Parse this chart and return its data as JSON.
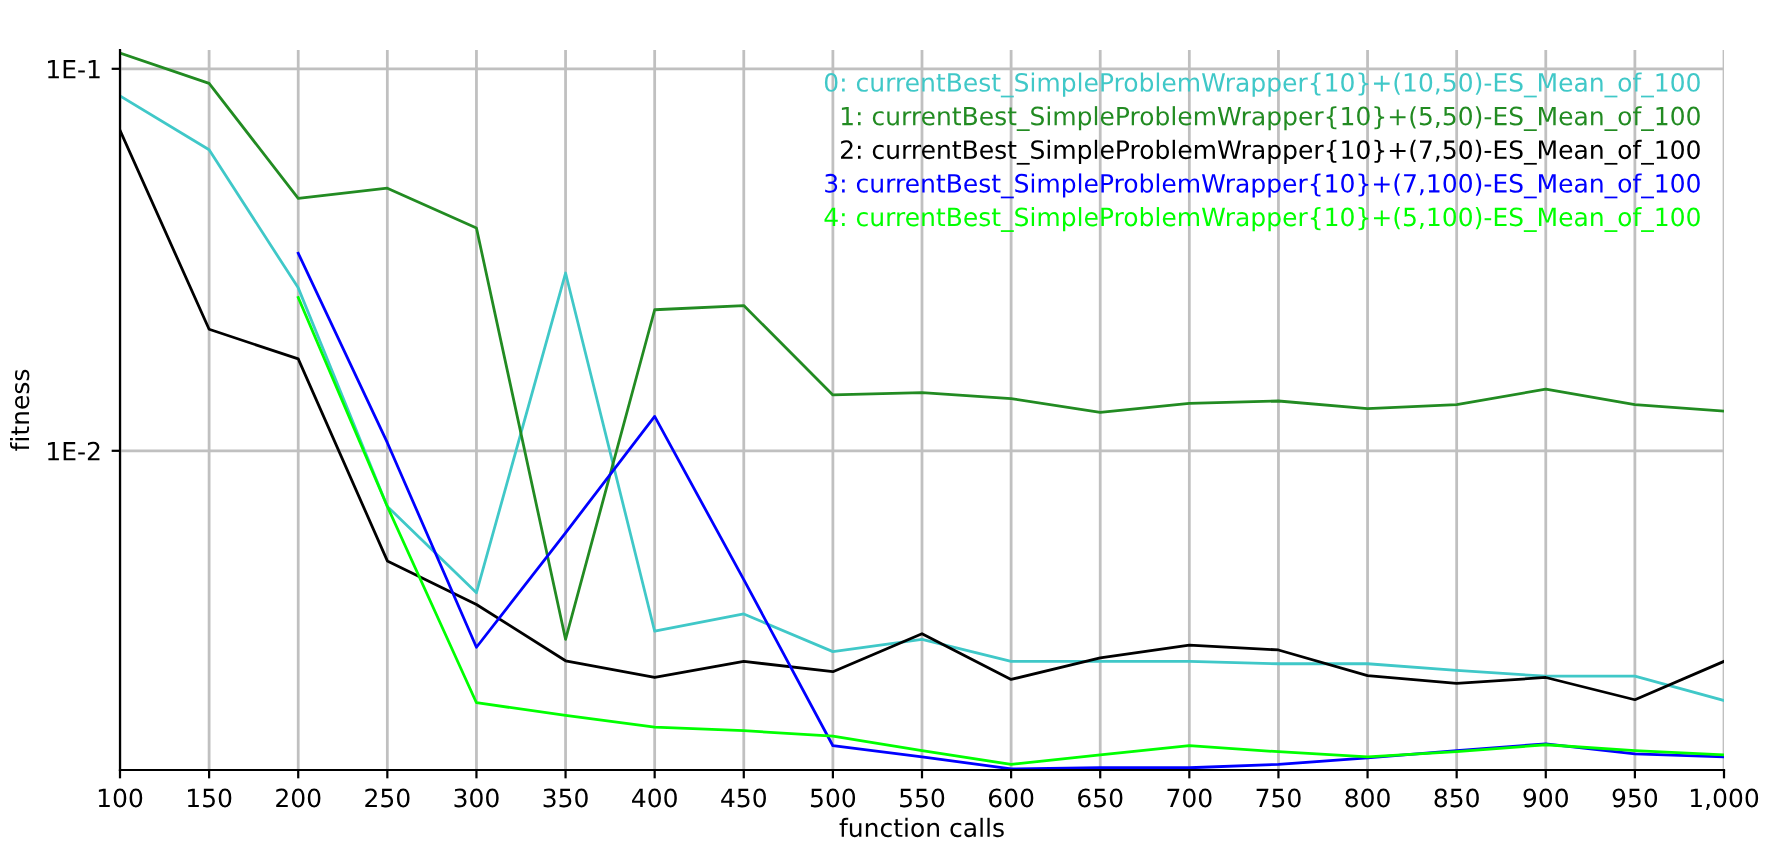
{
  "chart_data": {
    "type": "line",
    "xlabel": "function calls",
    "ylabel": "fitness",
    "log": "y",
    "grid": true,
    "legend": "top right",
    "marker": "none",
    "line_style": "solid",
    "x": [
      100,
      150,
      200,
      250,
      300,
      350,
      400,
      450,
      500,
      550,
      600,
      650,
      700,
      750,
      800,
      850,
      900,
      950,
      1000
    ],
    "xlim": [
      100,
      1000
    ],
    "ylim": [
      0.00146,
      0.112
    ],
    "xticks": [
      100,
      150,
      200,
      250,
      300,
      350,
      400,
      450,
      500,
      550,
      600,
      650,
      700,
      750,
      800,
      850,
      900,
      950,
      {
        "value": 1000,
        "label": "1,000"
      }
    ],
    "yticks": [
      {
        "value": 0.01,
        "label": "1E-2"
      },
      {
        "value": 0.1,
        "label": "1E-1"
      }
    ],
    "series": [
      {
        "name": "0: currentBest_SimpleProblemWrapper{10}+(10,50)-ES_Mean_of_100",
        "color": "#40c8c8",
        "values": [
          0.0849,
          0.0614,
          0.0267,
          0.00715,
          0.00425,
          0.0292,
          0.00337,
          0.00374,
          0.00298,
          0.00321,
          0.00281,
          0.00281,
          0.00281,
          0.00277,
          0.00277,
          0.00266,
          0.00257,
          0.00257,
          0.00222
        ]
      },
      {
        "name": "1: currentBest_SimpleProblemWrapper{10}+(5,50)-ES_Mean_of_100",
        "color": "#228b22",
        "values": [
          0.11,
          0.0916,
          0.0458,
          0.0487,
          0.0383,
          0.00321,
          0.0234,
          0.024,
          0.014,
          0.0142,
          0.0137,
          0.0126,
          0.0133,
          0.0135,
          0.0129,
          0.0132,
          0.0145,
          0.0132,
          0.0127
        ]
      },
      {
        "name": "2: currentBest_SimpleProblemWrapper{10}+(7,50)-ES_Mean_of_100",
        "color": "#000000",
        "values": [
          0.069,
          0.0208,
          0.0174,
          0.00515,
          0.00396,
          0.00282,
          0.00255,
          0.00281,
          0.00264,
          0.00332,
          0.00252,
          0.00287,
          0.0031,
          0.00301,
          0.00258,
          0.00246,
          0.00255,
          0.00223,
          0.00281
        ]
      },
      {
        "name": "3: currentBest_SimpleProblemWrapper{10}+(7,100)-ES_Mean_of_100",
        "color": "#0000ff",
        "values": [
          null,
          null,
          0.0329,
          0.0105,
          0.00306,
          0.0061,
          0.0123,
          0.0046,
          0.00169,
          0.00158,
          0.00147,
          0.00148,
          0.00148,
          0.00151,
          0.00157,
          0.00164,
          0.00171,
          0.00161,
          0.00158
        ]
      },
      {
        "name": "4: currentBest_SimpleProblemWrapper{10}+(5,100)-ES_Mean_of_100",
        "color": "#00ff00",
        "values": [
          null,
          null,
          0.0252,
          0.00715,
          0.00219,
          0.00203,
          0.00189,
          0.00185,
          0.00179,
          0.00164,
          0.00151,
          0.0016,
          0.00169,
          0.00163,
          0.00158,
          0.00163,
          0.0017,
          0.00164,
          0.0016
        ]
      }
    ]
  }
}
